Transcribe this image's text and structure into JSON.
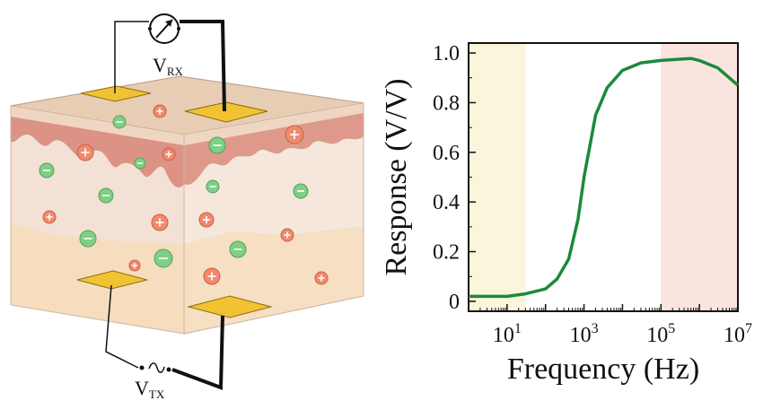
{
  "diagram": {
    "receiver_label": "V",
    "receiver_subscript": "RX",
    "transmitter_label": "V",
    "transmitter_subscript": "TX",
    "meter_icon": "voltmeter-icon",
    "source_icon": "ac-source-icon",
    "colors": {
      "electrode": "#f1c232",
      "skin_top": "#e8cdb5",
      "dermis": "#d98b7c",
      "tissue": "#f4e1d5",
      "fat": "#f6dcb9",
      "positive_ion": "#f08a6e",
      "negative_ion": "#7fcf86"
    }
  },
  "chart_data": {
    "type": "line",
    "xlabel": "Frequency (Hz)",
    "ylabel": "Response (V/V)",
    "x_scale": "log",
    "xlim": [
      1,
      10000000
    ],
    "ylim": [
      -0.04,
      1.04
    ],
    "xticks": [
      10,
      1000,
      100000,
      10000000
    ],
    "xtick_labels": [
      {
        "base": "10",
        "exp": "1"
      },
      {
        "base": "10",
        "exp": "3"
      },
      {
        "base": "10",
        "exp": "5"
      },
      {
        "base": "10",
        "exp": "7"
      }
    ],
    "yticks": [
      0,
      0.2,
      0.4,
      0.6,
      0.8,
      1.0
    ],
    "ytick_labels": [
      "0",
      "0.2",
      "0.4",
      "0.6",
      "0.8",
      "1.0"
    ],
    "series": [
      {
        "color": "#1a8a3c",
        "x": [
          1,
          10,
          30,
          100,
          200,
          400,
          700,
          1000,
          2000,
          4000,
          10000,
          30000,
          100000,
          300000,
          600000,
          1000000,
          3000000,
          10000000
        ],
        "y": [
          0.02,
          0.02,
          0.03,
          0.05,
          0.09,
          0.17,
          0.33,
          0.5,
          0.75,
          0.86,
          0.93,
          0.96,
          0.97,
          0.975,
          0.978,
          0.97,
          0.94,
          0.87
        ]
      }
    ],
    "background_bands": [
      {
        "from": 1,
        "to": 30,
        "color": "#fbf5dc"
      },
      {
        "from": 100000,
        "to": 10000000,
        "color": "#fbe4df"
      }
    ]
  }
}
